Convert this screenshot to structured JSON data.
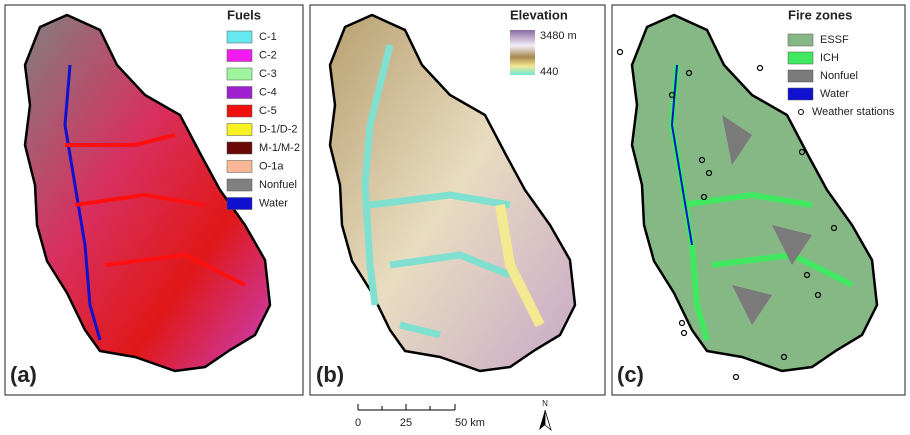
{
  "panels": [
    {
      "label": "(a)",
      "legend": {
        "title": "Fuels",
        "items": [
          {
            "name": "C-1",
            "color": "#66e8f0"
          },
          {
            "name": "C-2",
            "color": "#f21cf0"
          },
          {
            "name": "C-3",
            "color": "#9ef59e"
          },
          {
            "name": "C-4",
            "color": "#a020d0"
          },
          {
            "name": "C-5",
            "color": "#f01010"
          },
          {
            "name": "D-1/D-2",
            "color": "#f8f020"
          },
          {
            "name": "M-1/M-2",
            "color": "#6a0808"
          },
          {
            "name": "O-1a",
            "color": "#f8b898"
          },
          {
            "name": "Nonfuel",
            "color": "#808080"
          },
          {
            "name": "Water",
            "color": "#1010d0"
          }
        ]
      }
    },
    {
      "label": "(b)",
      "legend": {
        "title": "Elevation",
        "high": "3480 m",
        "low": "440"
      }
    },
    {
      "label": "(c)",
      "legend": {
        "title": "Fire zones",
        "items": [
          {
            "name": "ESSF",
            "color": "#86b886"
          },
          {
            "name": "ICH",
            "color": "#40e860"
          },
          {
            "name": "Nonfuel",
            "color": "#7a7a7a"
          },
          {
            "name": "Water",
            "color": "#1010d0"
          }
        ],
        "stations": "Weather stations"
      }
    }
  ],
  "scale_bar": {
    "labels": [
      "0",
      "25",
      "50 km"
    ]
  },
  "north": "N"
}
